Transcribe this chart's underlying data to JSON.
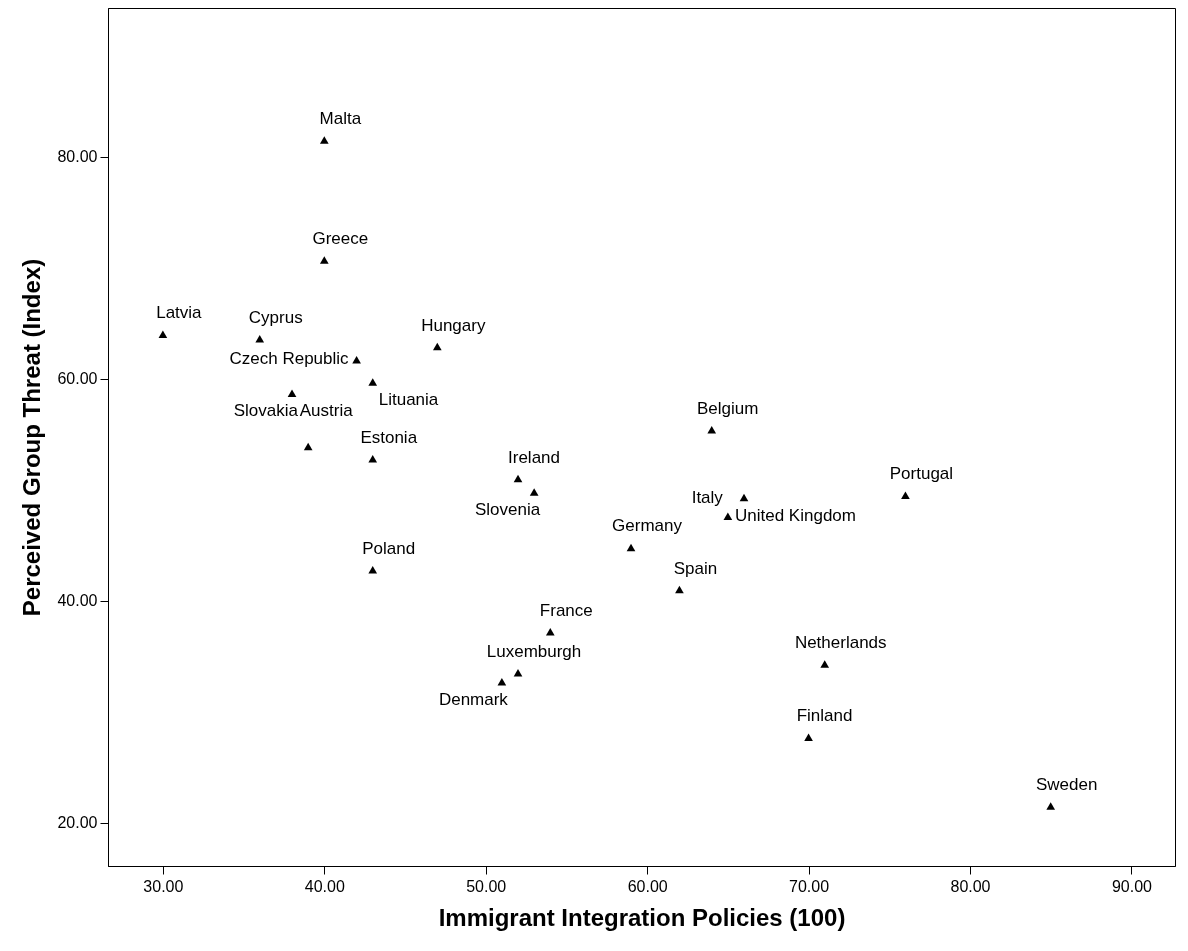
{
  "chart_data": {
    "type": "scatter",
    "xlabel": "Immigrant Integration Policies (100)",
    "ylabel": "Perceived Group Threat (Index)",
    "x": [
      40,
      40,
      30,
      36,
      42,
      47,
      43,
      38,
      39,
      43,
      52,
      53,
      64,
      76,
      65,
      66,
      59,
      43,
      62,
      54,
      52,
      51,
      71,
      70,
      85
    ],
    "series": [
      {
        "color": "#000000",
        "values": [
          81.5,
          70.7,
          64.0,
          63.6,
          61.7,
          62.9,
          59.7,
          58.7,
          53.9,
          52.8,
          51.0,
          49.8,
          55.4,
          49.5,
          47.6,
          49.3,
          44.8,
          42.8,
          41.0,
          37.2,
          33.5,
          32.7,
          34.3,
          27.7,
          21.5
        ]
      }
    ],
    "annotations": [
      {
        "text": "Malta",
        "x": 40,
        "y": 81.5
      },
      {
        "text": "Greece",
        "x": 40,
        "y": 70.7
      },
      {
        "text": "Latvia",
        "x": 30,
        "y": 64.0
      },
      {
        "text": "Cyprus",
        "x": 36,
        "y": 63.6
      },
      {
        "text": "Czech Republic",
        "x": 42,
        "y": 61.7
      },
      {
        "text": "Hungary",
        "x": 47,
        "y": 62.9
      },
      {
        "text": "Lituania",
        "x": 43,
        "y": 59.7
      },
      {
        "text": "Slovakia",
        "x": 38,
        "y": 58.7
      },
      {
        "text": "Austria",
        "x": 39,
        "y": 53.9
      },
      {
        "text": "Estonia",
        "x": 43,
        "y": 52.8
      },
      {
        "text": "Ireland",
        "x": 52,
        "y": 51.0
      },
      {
        "text": "Slovenia",
        "x": 53,
        "y": 49.8
      },
      {
        "text": "Belgium",
        "x": 64,
        "y": 55.4
      },
      {
        "text": "Portugal",
        "x": 76,
        "y": 49.5
      },
      {
        "text": "Italy",
        "x": 65,
        "y": 47.6
      },
      {
        "text": "United Kingdom",
        "x": 66,
        "y": 49.3
      },
      {
        "text": "Germany",
        "x": 59,
        "y": 44.8
      },
      {
        "text": "Poland",
        "x": 43,
        "y": 42.8
      },
      {
        "text": "Spain",
        "x": 62,
        "y": 41.0
      },
      {
        "text": "France",
        "x": 54,
        "y": 37.2
      },
      {
        "text": "Luxemburgh",
        "x": 52,
        "y": 33.5
      },
      {
        "text": "Denmark",
        "x": 51,
        "y": 32.7
      },
      {
        "text": "Netherlands",
        "x": 71,
        "y": 34.3
      },
      {
        "text": "Finland",
        "x": 70,
        "y": 27.7
      },
      {
        "text": "Sweden",
        "x": 85,
        "y": 21.5
      }
    ],
    "xlim": [
      26.6,
      92.7
    ],
    "ylim": [
      16.1,
      93.4
    ],
    "xticks": [
      {
        "value": 30,
        "label": "30.00"
      },
      {
        "value": 40,
        "label": "40.00"
      },
      {
        "value": 50,
        "label": "50.00"
      },
      {
        "value": 60,
        "label": "60.00"
      },
      {
        "value": 70,
        "label": "70.00"
      },
      {
        "value": 80,
        "label": "80.00"
      },
      {
        "value": 90,
        "label": "90.00"
      }
    ],
    "yticks": [
      {
        "value": 20,
        "label": "20.00"
      },
      {
        "value": 40,
        "label": "40.00"
      },
      {
        "value": 60,
        "label": "60.00"
      },
      {
        "value": 80,
        "label": "80.00"
      }
    ],
    "marker": "triangle",
    "grid": false
  }
}
